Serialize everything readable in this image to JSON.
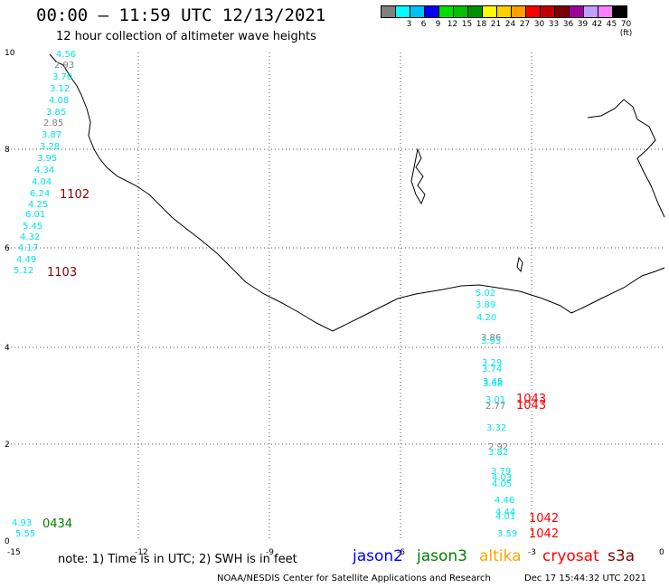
{
  "title": "00:00 – 11:59 UTC 12/13/2021",
  "subtitle": "12 hour collection of altimeter wave heights",
  "legend": {
    "colors": [
      "#808080",
      "#00ffff",
      "#00bfff",
      "#0000ff",
      "#00e000",
      "#00c000",
      "#009000",
      "#ffff00",
      "#ffd000",
      "#ffa000",
      "#ff0000",
      "#c00000",
      "#800000",
      "#a000a0",
      "#c0a0ff",
      "#ff80ff",
      "#000000"
    ],
    "labels": [
      "",
      "3",
      "6",
      "9",
      "12",
      "15",
      "18",
      "21",
      "24",
      "27",
      "30",
      "33",
      "36",
      "39",
      "42",
      "45",
      "70 (ft)"
    ]
  },
  "axes": {
    "x_ticks": [
      "-15",
      "-12",
      "-9",
      "-6",
      "-3",
      "0"
    ],
    "y_ticks": [
      "0",
      "2",
      "4",
      "6",
      "8",
      "10"
    ]
  },
  "wave_labels": [
    {
      "v": "4.56",
      "c": "#00e5e5"
    },
    {
      "v": "2.93",
      "c": "#808080"
    },
    {
      "v": "3.70",
      "c": "#00e5e5"
    },
    {
      "v": "3.12",
      "c": "#00e5e5"
    },
    {
      "v": "4.08",
      "c": "#00e5e5"
    },
    {
      "v": "3.85",
      "c": "#00e5e5"
    },
    {
      "v": "2.85",
      "c": "#808080"
    },
    {
      "v": "3.87",
      "c": "#00e5e5"
    },
    {
      "v": "3.28",
      "c": "#00e5e5"
    },
    {
      "v": "3.95",
      "c": "#00e5e5"
    },
    {
      "v": "4.34",
      "c": "#00e5e5"
    },
    {
      "v": "4.04",
      "c": "#00e5e5"
    },
    {
      "v": "6.24",
      "c": "#00e5e5"
    },
    {
      "v": "4.25",
      "c": "#00e5e5"
    },
    {
      "v": "6.01",
      "c": "#00e5e5"
    },
    {
      "v": "5.45",
      "c": "#00e5e5"
    },
    {
      "v": "4.32",
      "c": "#00e5e5"
    },
    {
      "v": "4.17",
      "c": "#00e5e5"
    },
    {
      "v": "4.49",
      "c": "#00e5e5"
    },
    {
      "v": "5.12",
      "c": "#00e5e5"
    },
    {
      "v": "5.02",
      "c": "#00e5e5"
    },
    {
      "v": "3.89",
      "c": "#00e5e5"
    },
    {
      "v": "4.20",
      "c": "#00e5e5"
    },
    {
      "v": "3.86",
      "c": "#808080"
    },
    {
      "v": "3.93",
      "c": "#00e5e5"
    },
    {
      "v": "3.29",
      "c": "#00e5e5"
    },
    {
      "v": "3.74",
      "c": "#00e5e5"
    },
    {
      "v": "3.45",
      "c": "#00e5e5"
    },
    {
      "v": "3.68",
      "c": "#00e5e5"
    },
    {
      "v": "3.01",
      "c": "#00e5e5"
    },
    {
      "v": "2.77",
      "c": "#808080"
    },
    {
      "v": "3.32",
      "c": "#00e5e5"
    },
    {
      "v": "2.92",
      "c": "#808080"
    },
    {
      "v": "3.82",
      "c": "#00e5e5"
    },
    {
      "v": "3.79",
      "c": "#00e5e5"
    },
    {
      "v": "4.03",
      "c": "#00e5e5"
    },
    {
      "v": "4.05",
      "c": "#00e5e5"
    },
    {
      "v": "4.46",
      "c": "#00e5e5"
    },
    {
      "v": "4.44",
      "c": "#00e5e5"
    },
    {
      "v": "4.01",
      "c": "#00e5e5"
    },
    {
      "v": "3.59",
      "c": "#00e5e5"
    },
    {
      "v": "4.93",
      "c": "#00e5e5"
    },
    {
      "v": "5.55",
      "c": "#00e5e5"
    }
  ],
  "time_labels": [
    {
      "v": "1102",
      "c": "#8b0000"
    },
    {
      "v": "1103",
      "c": "#8b0000"
    },
    {
      "v": "1043",
      "c": "#ff0000"
    },
    {
      "v": "1043",
      "c": "#ff0000"
    },
    {
      "v": "1042",
      "c": "#ff0000"
    },
    {
      "v": "1042",
      "c": "#ff0000"
    },
    {
      "v": "0434",
      "c": "#008000"
    }
  ],
  "footnote": "note:  1) Time is in UTC;  2) SWH is in feet",
  "satellites": [
    {
      "name": "jason2",
      "color": "#0000ff"
    },
    {
      "name": "jason3",
      "color": "#008000"
    },
    {
      "name": "altika",
      "color": "#ffa500"
    },
    {
      "name": "cryosat",
      "color": "#ff0000"
    },
    {
      "name": "s3a",
      "color": "#8b0000"
    }
  ],
  "credit": "NOAA/NESDIS Center for Satellite Applications and Research",
  "credit_time": "Dec 17 15:44:32 UTC 2021"
}
